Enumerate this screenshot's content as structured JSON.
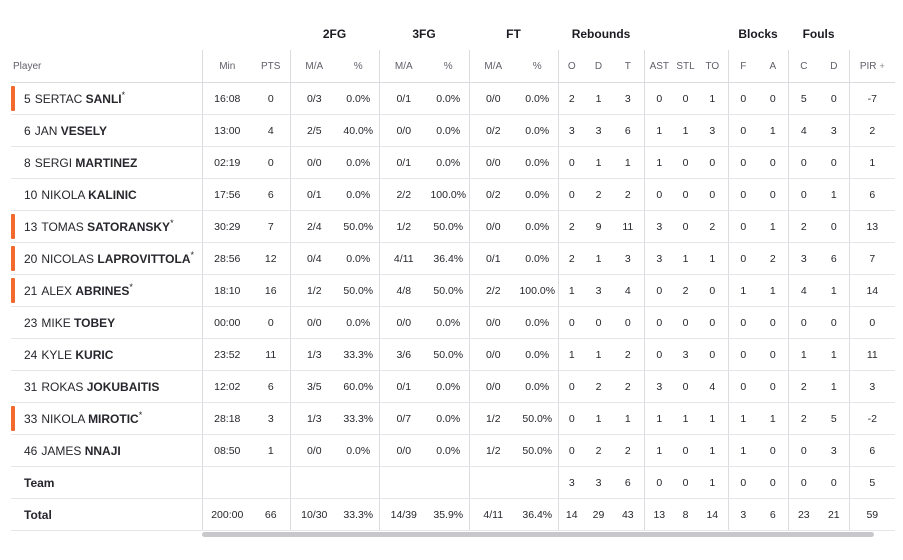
{
  "groups": {
    "fg2": "2FG",
    "fg3": "3FG",
    "ft": "FT",
    "rebounds": "Rebounds",
    "blocks": "Blocks",
    "fouls": "Fouls"
  },
  "columns": [
    "Player",
    "Min",
    "PTS",
    "M/A",
    "%",
    "M/A",
    "%",
    "M/A",
    "%",
    "O",
    "D",
    "T",
    "AST",
    "STL",
    "TO",
    "F",
    "A",
    "C",
    "D",
    "PIR"
  ],
  "players": [
    {
      "num": "5",
      "first": "SERTAC",
      "last": "SANLI",
      "starter": true,
      "stats": [
        "16:08",
        "0",
        "0/3",
        "0.0%",
        "0/1",
        "0.0%",
        "0/0",
        "0.0%",
        "2",
        "1",
        "3",
        "0",
        "0",
        "1",
        "0",
        "0",
        "5",
        "0",
        "-7"
      ]
    },
    {
      "num": "6",
      "first": "JAN",
      "last": "VESELY",
      "starter": false,
      "stats": [
        "13:00",
        "4",
        "2/5",
        "40.0%",
        "0/0",
        "0.0%",
        "0/2",
        "0.0%",
        "3",
        "3",
        "6",
        "1",
        "1",
        "3",
        "0",
        "1",
        "4",
        "3",
        "2"
      ]
    },
    {
      "num": "8",
      "first": "SERGI",
      "last": "MARTINEZ",
      "starter": false,
      "stats": [
        "02:19",
        "0",
        "0/0",
        "0.0%",
        "0/1",
        "0.0%",
        "0/0",
        "0.0%",
        "0",
        "1",
        "1",
        "1",
        "0",
        "0",
        "0",
        "0",
        "0",
        "0",
        "1"
      ]
    },
    {
      "num": "10",
      "first": "NIKOLA",
      "last": "KALINIC",
      "starter": false,
      "stats": [
        "17:56",
        "6",
        "0/1",
        "0.0%",
        "2/2",
        "100.0%",
        "0/2",
        "0.0%",
        "0",
        "2",
        "2",
        "0",
        "0",
        "0",
        "0",
        "0",
        "0",
        "1",
        "6"
      ]
    },
    {
      "num": "13",
      "first": "TOMAS",
      "last": "SATORANSKY",
      "starter": true,
      "stats": [
        "30:29",
        "7",
        "2/4",
        "50.0%",
        "1/2",
        "50.0%",
        "0/0",
        "0.0%",
        "2",
        "9",
        "11",
        "3",
        "0",
        "2",
        "0",
        "1",
        "2",
        "0",
        "13"
      ]
    },
    {
      "num": "20",
      "first": "NICOLAS",
      "last": "LAPROVITTOLA",
      "starter": true,
      "stats": [
        "28:56",
        "12",
        "0/4",
        "0.0%",
        "4/11",
        "36.4%",
        "0/1",
        "0.0%",
        "2",
        "1",
        "3",
        "3",
        "1",
        "1",
        "0",
        "2",
        "3",
        "6",
        "7"
      ]
    },
    {
      "num": "21",
      "first": "ALEX",
      "last": "ABRINES",
      "starter": true,
      "stats": [
        "18:10",
        "16",
        "1/2",
        "50.0%",
        "4/8",
        "50.0%",
        "2/2",
        "100.0%",
        "1",
        "3",
        "4",
        "0",
        "2",
        "0",
        "1",
        "1",
        "4",
        "1",
        "14"
      ]
    },
    {
      "num": "23",
      "first": "MIKE",
      "last": "TOBEY",
      "starter": false,
      "stats": [
        "00:00",
        "0",
        "0/0",
        "0.0%",
        "0/0",
        "0.0%",
        "0/0",
        "0.0%",
        "0",
        "0",
        "0",
        "0",
        "0",
        "0",
        "0",
        "0",
        "0",
        "0",
        "0"
      ]
    },
    {
      "num": "24",
      "first": "KYLE",
      "last": "KURIC",
      "starter": false,
      "stats": [
        "23:52",
        "11",
        "1/3",
        "33.3%",
        "3/6",
        "50.0%",
        "0/0",
        "0.0%",
        "1",
        "1",
        "2",
        "0",
        "3",
        "0",
        "0",
        "0",
        "1",
        "1",
        "11"
      ]
    },
    {
      "num": "31",
      "first": "ROKAS",
      "last": "JOKUBAITIS",
      "starter": false,
      "stats": [
        "12:02",
        "6",
        "3/5",
        "60.0%",
        "0/1",
        "0.0%",
        "0/0",
        "0.0%",
        "0",
        "2",
        "2",
        "3",
        "0",
        "4",
        "0",
        "0",
        "2",
        "1",
        "3"
      ]
    },
    {
      "num": "33",
      "first": "NIKOLA",
      "last": "MIROTIC",
      "starter": true,
      "stats": [
        "28:18",
        "3",
        "1/3",
        "33.3%",
        "0/7",
        "0.0%",
        "1/2",
        "50.0%",
        "0",
        "1",
        "1",
        "1",
        "1",
        "1",
        "1",
        "1",
        "2",
        "5",
        "-2"
      ]
    },
    {
      "num": "46",
      "first": "JAMES",
      "last": "NNAJI",
      "starter": false,
      "stats": [
        "08:50",
        "1",
        "0/0",
        "0.0%",
        "0/0",
        "0.0%",
        "1/2",
        "50.0%",
        "0",
        "2",
        "2",
        "1",
        "0",
        "1",
        "1",
        "0",
        "0",
        "3",
        "6"
      ]
    }
  ],
  "team": {
    "label": "Team",
    "stats": [
      "",
      "",
      "",
      "",
      "",
      "",
      "",
      "",
      "3",
      "3",
      "6",
      "0",
      "0",
      "1",
      "0",
      "0",
      "0",
      "0",
      "5"
    ]
  },
  "total": {
    "label": "Total",
    "stats": [
      "200:00",
      "66",
      "10/30",
      "33.3%",
      "14/39",
      "35.9%",
      "4/11",
      "36.4%",
      "14",
      "29",
      "43",
      "13",
      "8",
      "14",
      "3",
      "6",
      "23",
      "21",
      "59"
    ]
  },
  "accent_color": "#f26a2e",
  "icons": {
    "expand": "plus-icon"
  }
}
